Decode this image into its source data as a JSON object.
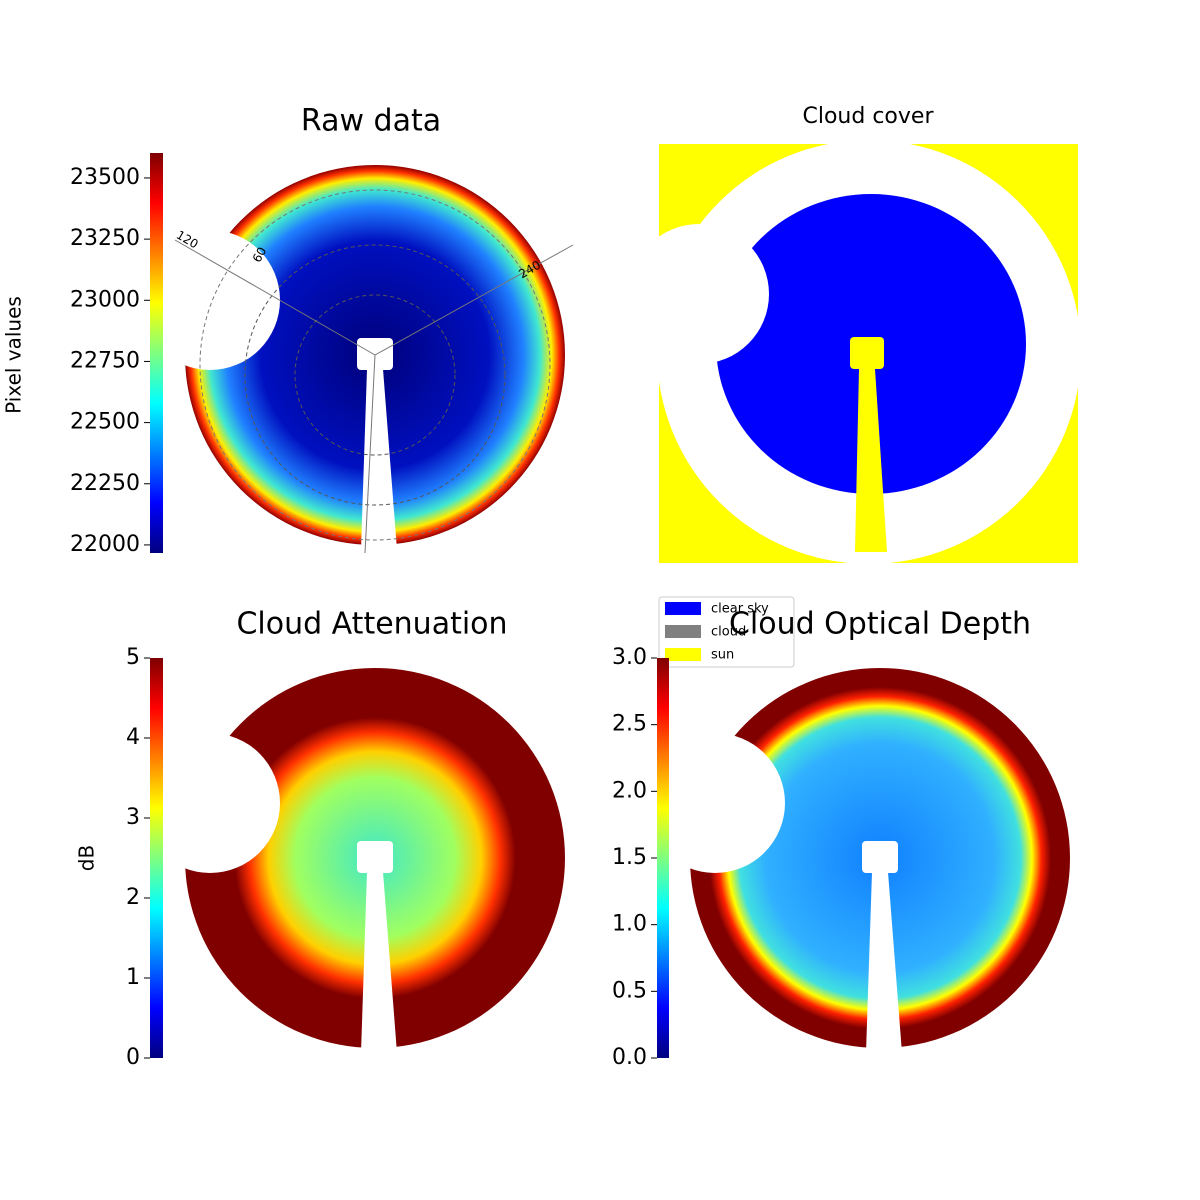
{
  "chart_data": [
    {
      "type": "colormap-image",
      "title": "Raw data",
      "colorbar_label": "Pixel values",
      "colormap": "jet",
      "clim": [
        21967,
        23602
      ],
      "cticks": [
        22000,
        22250,
        22500,
        22750,
        23000,
        23250,
        23500
      ],
      "polar_labels": [
        "120",
        "60",
        "240"
      ]
    },
    {
      "type": "classification",
      "title": "Cloud cover",
      "legend": [
        {
          "name": "clear sky",
          "color": "#0000ff"
        },
        {
          "name": "cloud",
          "color": "#808080"
        },
        {
          "name": "sun",
          "color": "#ffff00"
        }
      ]
    },
    {
      "type": "colormap-image",
      "title": "Cloud Attenuation",
      "colorbar_label": "dB",
      "colormap": "jet",
      "clim": [
        0,
        5
      ],
      "cticks": [
        0,
        1,
        2,
        3,
        4,
        5
      ]
    },
    {
      "type": "colormap-image",
      "title": "Cloud Optical Depth",
      "colormap": "jet",
      "clim": [
        0,
        3
      ],
      "cticks": [
        {
          "value": 0,
          "label": "0.0"
        },
        {
          "value": 0.5,
          "label": "0.5"
        },
        {
          "value": 1,
          "label": "1.0"
        },
        {
          "value": 1.5,
          "label": "1.5"
        },
        {
          "value": 2,
          "label": "2.0"
        },
        {
          "value": 2.5,
          "label": "2.5"
        },
        {
          "value": 3,
          "label": "3.0"
        }
      ]
    }
  ]
}
